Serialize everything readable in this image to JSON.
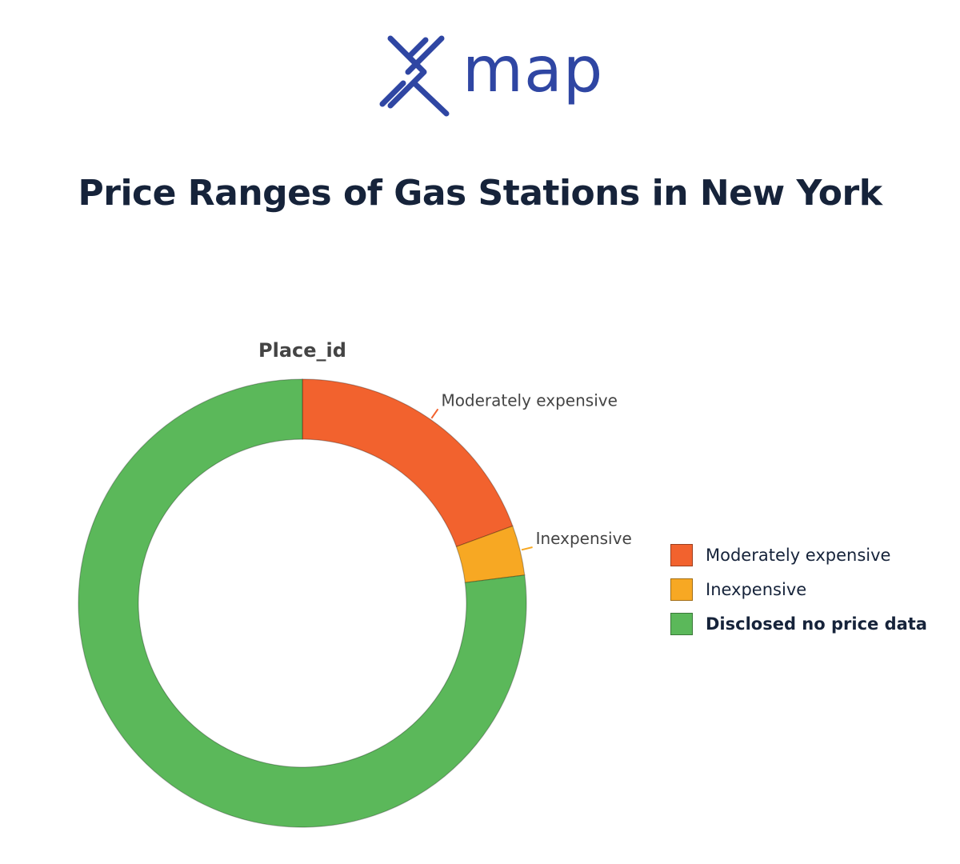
{
  "brand": {
    "wordmark": "map",
    "color": "#2f46a3"
  },
  "page": {
    "title": "Price Ranges of Gas Stations in New York"
  },
  "chart_data": {
    "type": "pie",
    "hole": true,
    "title": "Place_id",
    "slices": [
      {
        "label": "Moderately expensive",
        "value": 19.4,
        "color": "#f2622e"
      },
      {
        "label": "Inexpensive",
        "value": 3.6,
        "color": "#f7a823"
      },
      {
        "label": "Disclosed no price data",
        "value": 77.0,
        "color": "#5bb85a"
      }
    ],
    "slice_labels": [
      "Moderately expensive",
      "Inexpensive"
    ],
    "legend": {
      "position": "right",
      "items": [
        {
          "label": "Moderately expensive",
          "color": "#f2622e",
          "bold": false
        },
        {
          "label": "Inexpensive",
          "color": "#f7a823",
          "bold": false
        },
        {
          "label": "Disclosed no price data",
          "color": "#5bb85a",
          "bold": true
        }
      ]
    }
  }
}
